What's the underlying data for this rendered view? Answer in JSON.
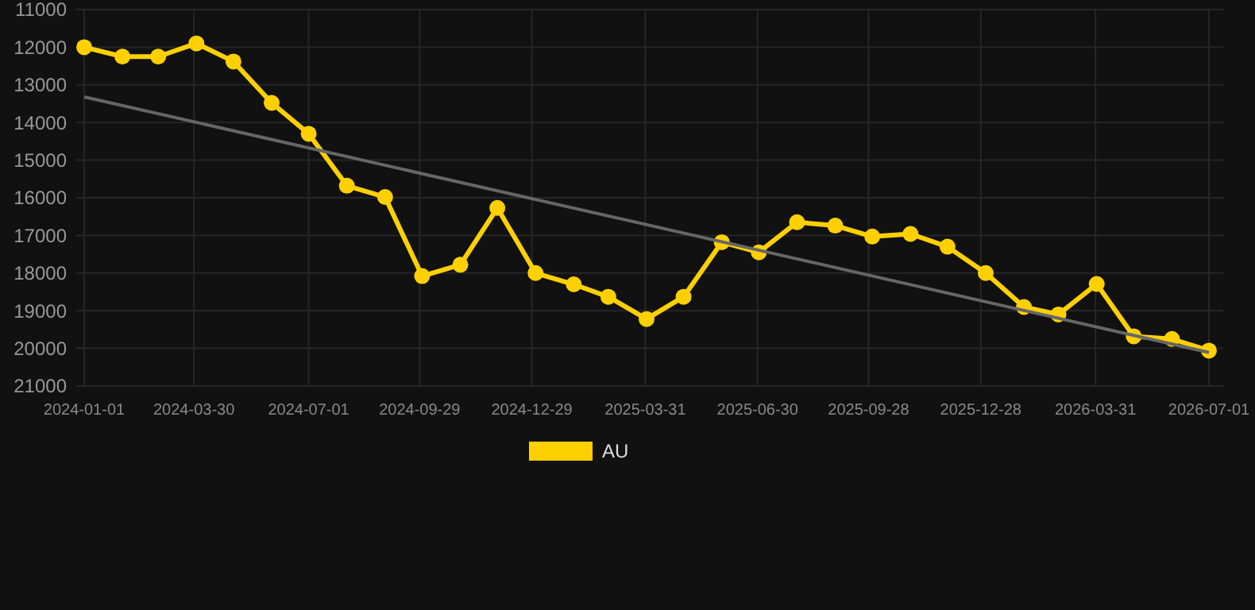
{
  "chart_data": {
    "type": "line",
    "x": [
      "2024-01-01",
      "2024-02-01",
      "2024-03-01",
      "2024-04-01",
      "2024-05-01",
      "2024-06-01",
      "2024-07-01",
      "2024-08-01",
      "2024-09-01",
      "2024-10-01",
      "2024-11-01",
      "2024-12-01",
      "2025-01-01",
      "2025-02-01",
      "2025-03-01",
      "2025-04-01",
      "2025-05-01",
      "2025-06-01",
      "2025-07-01",
      "2025-08-01",
      "2025-09-01",
      "2025-10-01",
      "2025-11-01",
      "2025-12-01",
      "2026-01-01",
      "2026-02-01",
      "2026-03-01",
      "2026-04-01",
      "2026-05-01",
      "2026-06-01",
      "2026-07-01"
    ],
    "series": [
      {
        "name": "AU",
        "color": "#ffd000",
        "marker": "circle",
        "values": [
          12000,
          12250,
          12250,
          11900,
          12380,
          13480,
          14300,
          15680,
          15980,
          18080,
          17780,
          16270,
          18000,
          18300,
          18630,
          19220,
          18630,
          17180,
          17450,
          16650,
          16740,
          17030,
          16960,
          17300,
          18000,
          18900,
          19100,
          18290,
          19680,
          19750,
          20060
        ]
      },
      {
        "type": "line",
        "color": "#666666",
        "marker": "none",
        "x": [
          "2024-01-01",
          "2026-07-01"
        ],
        "values": [
          13320,
          20110
        ]
      }
    ],
    "xlim": [
      "2024-01-01",
      "2026-07-01"
    ],
    "xticks": [
      "2024-01-01",
      "2024-03-30",
      "2024-07-01",
      "2024-09-29",
      "2024-12-29",
      "2025-03-31",
      "2025-06-30",
      "2025-09-28",
      "2025-12-28",
      "2026-03-31",
      "2026-07-01"
    ],
    "ylim": [
      21000,
      11000
    ],
    "yticks": [
      11000,
      12000,
      13000,
      14000,
      15000,
      16000,
      17000,
      18000,
      19000,
      20000,
      21000
    ],
    "grid": true,
    "legend": "bottom",
    "line_style": "solid"
  }
}
